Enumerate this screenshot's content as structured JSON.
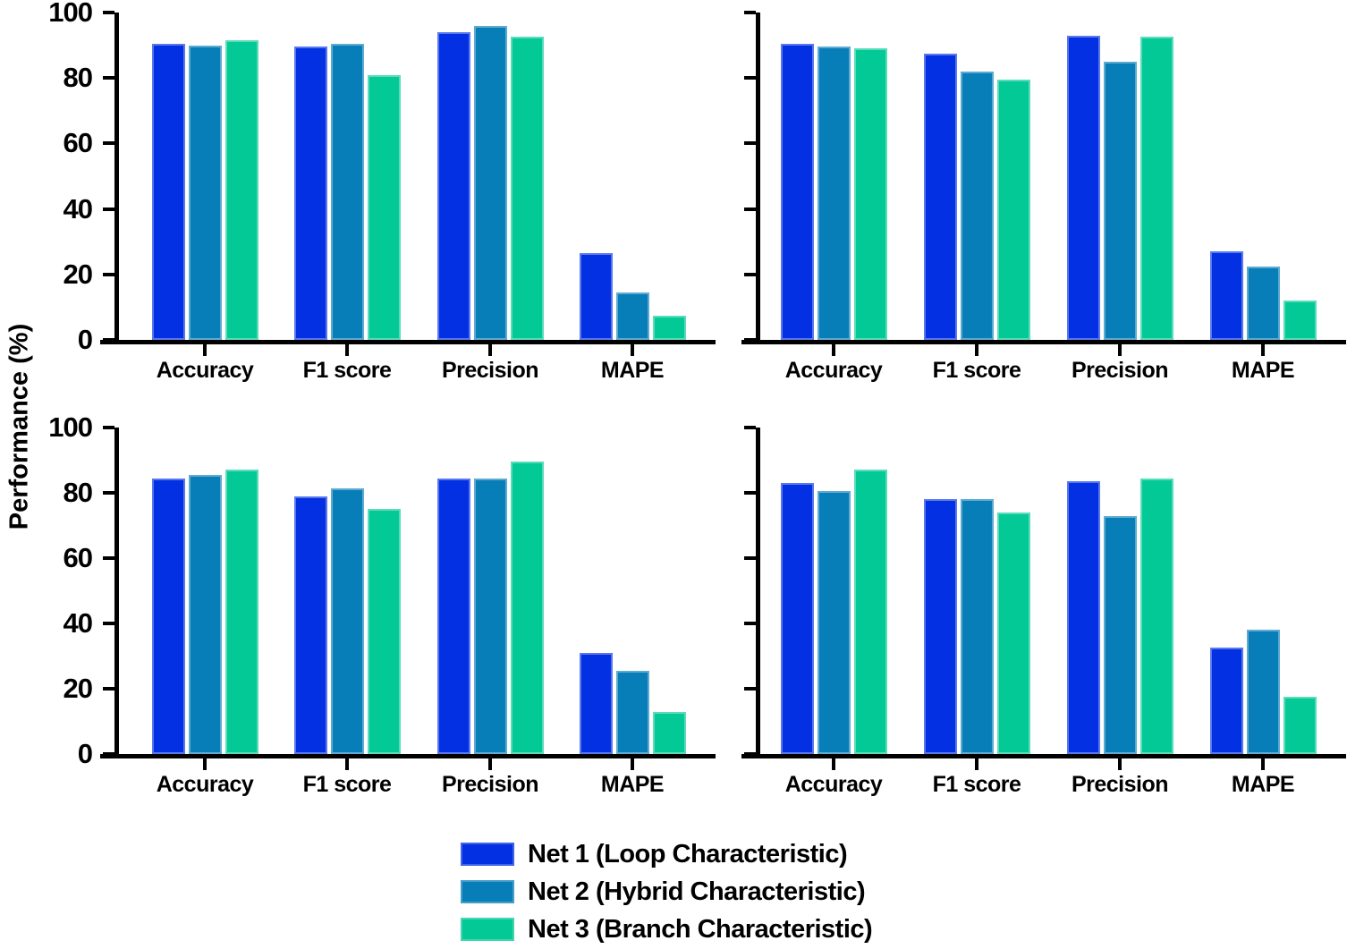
{
  "figure": {
    "ylabel": "Performance (%)",
    "background": "#ffffff",
    "axis_color": "#000000",
    "text_color": "#000000"
  },
  "legend": {
    "position": "bottom-center",
    "items": [
      {
        "label": "Net 1 (Loop Characteristic)",
        "color": "#0330E3"
      },
      {
        "label": "Net 2 (Hybrid Characteristic)",
        "color": "#087EB8"
      },
      {
        "label": "Net 3 (Branch Characteristic)",
        "color": "#02C996"
      }
    ]
  },
  "chart_data": [
    {
      "id": "top-left",
      "type": "bar",
      "categories": [
        "Accuracy",
        "F1 score",
        "Precision",
        "MAPE"
      ],
      "series": [
        {
          "name": "Net 1 (Loop Characteristic)",
          "color": "#0330E3",
          "values": [
            90.5,
            89.5,
            94.0,
            26.5
          ]
        },
        {
          "name": "Net 2 (Hybrid Characteristic)",
          "color": "#087EB8",
          "values": [
            90.0,
            90.5,
            96.0,
            14.5
          ]
        },
        {
          "name": "Net 3 (Branch Characteristic)",
          "color": "#02C996",
          "values": [
            91.5,
            81.0,
            92.5,
            7.5
          ]
        }
      ],
      "xlabel": "",
      "ylabel": "Performance (%)",
      "ylim": [
        0,
        100
      ],
      "yticks": [
        0,
        20,
        40,
        60,
        80,
        100
      ],
      "show_y_tick_labels": true,
      "grid": false
    },
    {
      "id": "top-right",
      "type": "bar",
      "categories": [
        "Accuracy",
        "F1 score",
        "Precision",
        "MAPE"
      ],
      "series": [
        {
          "name": "Net 1 (Loop Characteristic)",
          "color": "#0330E3",
          "values": [
            90.5,
            87.5,
            93.0,
            27.0
          ]
        },
        {
          "name": "Net 2 (Hybrid Characteristic)",
          "color": "#087EB8",
          "values": [
            89.5,
            82.0,
            85.0,
            22.5
          ]
        },
        {
          "name": "Net 3 (Branch Characteristic)",
          "color": "#02C996",
          "values": [
            89.0,
            79.5,
            92.5,
            12.0
          ]
        }
      ],
      "xlabel": "",
      "ylabel": "Performance (%)",
      "ylim": [
        0,
        100
      ],
      "yticks": [
        0,
        20,
        40,
        60,
        80,
        100
      ],
      "show_y_tick_labels": false,
      "grid": false
    },
    {
      "id": "bottom-left",
      "type": "bar",
      "categories": [
        "Accuracy",
        "F1 score",
        "Precision",
        "MAPE"
      ],
      "series": [
        {
          "name": "Net 1 (Loop Characteristic)",
          "color": "#0330E3",
          "values": [
            84.5,
            79.0,
            84.5,
            31.0
          ]
        },
        {
          "name": "Net 2 (Hybrid Characteristic)",
          "color": "#087EB8",
          "values": [
            85.5,
            81.5,
            84.5,
            25.5
          ]
        },
        {
          "name": "Net 3 (Branch Characteristic)",
          "color": "#02C996",
          "values": [
            87.0,
            75.0,
            89.5,
            13.0
          ]
        }
      ],
      "xlabel": "",
      "ylabel": "Performance (%)",
      "ylim": [
        0,
        100
      ],
      "yticks": [
        0,
        20,
        40,
        60,
        80,
        100
      ],
      "show_y_tick_labels": true,
      "grid": false
    },
    {
      "id": "bottom-right",
      "type": "bar",
      "categories": [
        "Accuracy",
        "F1 score",
        "Precision",
        "MAPE"
      ],
      "series": [
        {
          "name": "Net 1 (Loop Characteristic)",
          "color": "#0330E3",
          "values": [
            83.0,
            78.0,
            83.5,
            32.5
          ]
        },
        {
          "name": "Net 2 (Hybrid Characteristic)",
          "color": "#087EB8",
          "values": [
            80.5,
            78.0,
            73.0,
            38.0
          ]
        },
        {
          "name": "Net 3 (Branch Characteristic)",
          "color": "#02C996",
          "values": [
            87.0,
            74.0,
            84.5,
            17.5
          ]
        }
      ],
      "xlabel": "",
      "ylabel": "Performance (%)",
      "ylim": [
        0,
        100
      ],
      "yticks": [
        0,
        20,
        40,
        60,
        80,
        100
      ],
      "show_y_tick_labels": false,
      "grid": false
    }
  ]
}
